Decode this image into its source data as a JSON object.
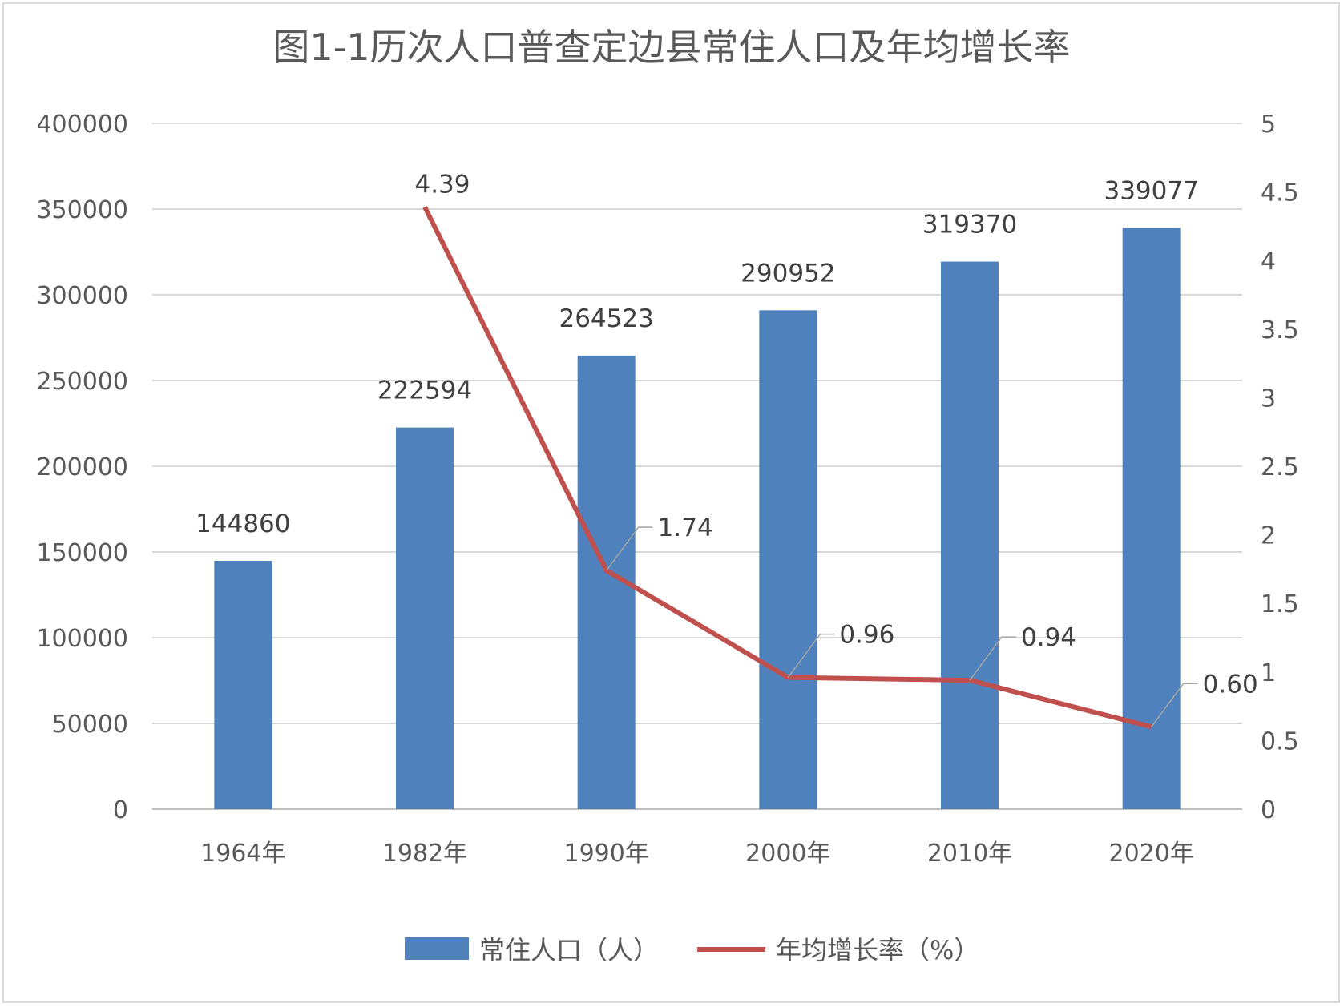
{
  "chart_data": {
    "type": "bar+line",
    "title": "图1-1历次人口普查定边县常住人口及年均增长率",
    "categories": [
      "1964年",
      "1982年",
      "1990年",
      "2000年",
      "2010年",
      "2020年"
    ],
    "series": [
      {
        "name": "常住人口（人）",
        "type": "bar",
        "axis": "left",
        "color": "#4F81BD",
        "values": [
          144860,
          222594,
          264523,
          290952,
          319370,
          339077
        ],
        "labels": [
          "144860",
          "222594",
          "264523",
          "290952",
          "319370",
          "339077"
        ]
      },
      {
        "name": "年均增长率（%）",
        "type": "line",
        "axis": "right",
        "color": "#C0504D",
        "values": [
          null,
          4.39,
          1.74,
          0.96,
          0.94,
          0.6
        ],
        "labels": [
          "",
          "4.39",
          "1.74",
          "0.96",
          "0.94",
          "0.60"
        ]
      }
    ],
    "y_left": {
      "min": 0,
      "max": 400000,
      "ticks": [
        "0",
        "50000",
        "100000",
        "150000",
        "200000",
        "250000",
        "300000",
        "350000",
        "400000"
      ]
    },
    "y_right": {
      "min": 0,
      "max": 5,
      "ticks": [
        "0",
        "0.5",
        "1",
        "1.5",
        "2",
        "2.5",
        "3",
        "3.5",
        "4",
        "4.5",
        "5"
      ]
    },
    "grid": true,
    "legend": "bottom"
  }
}
